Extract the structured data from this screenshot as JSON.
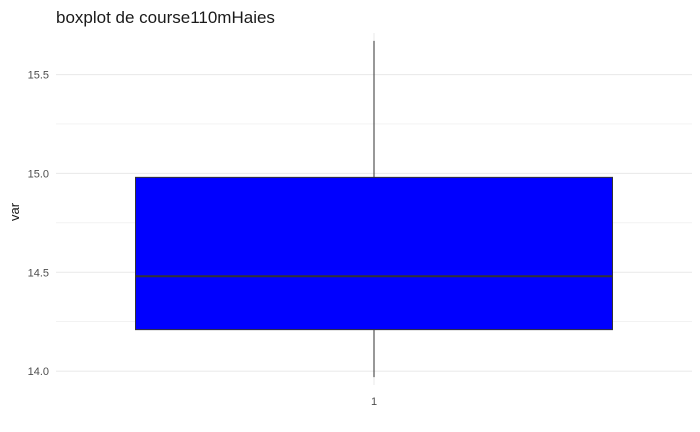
{
  "chart_data": {
    "type": "boxplot",
    "title": "boxplot de course110mHaies",
    "xlabel": "",
    "ylabel": "var",
    "categories": [
      "1"
    ],
    "ylim": [
      13.93,
      15.71
    ],
    "y_ticks": [
      "14.0",
      "14.5",
      "15.0",
      "15.5"
    ],
    "grid": true,
    "box": {
      "category": "1",
      "min": 13.97,
      "q1": 14.21,
      "median": 14.48,
      "q3": 14.98,
      "max": 15.67
    },
    "colors": {
      "box_fill": "#0000ff",
      "box_outline": "#333333",
      "grid": "#ebebeb"
    }
  }
}
